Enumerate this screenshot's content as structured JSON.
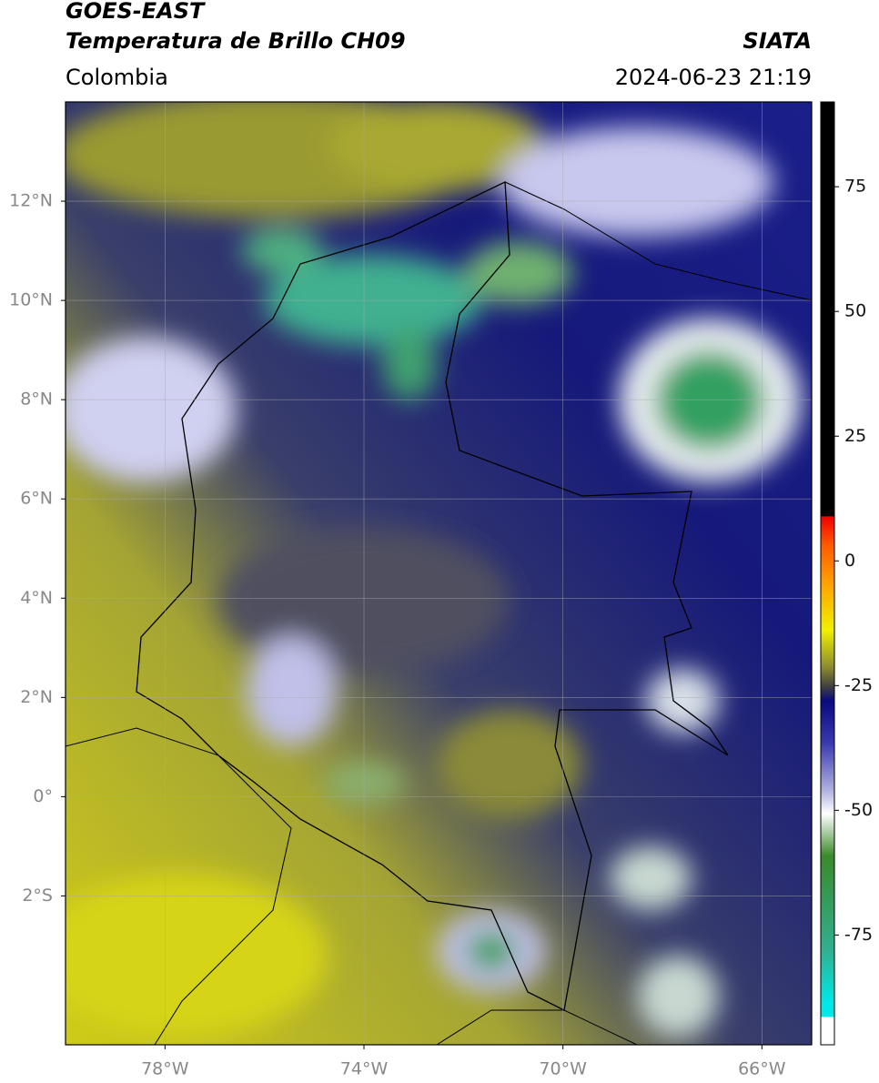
{
  "header": {
    "title": "GOES-EAST",
    "subtitle": "Temperatura de Brillo CH09",
    "source": "SIATA",
    "region": "Colombia",
    "datetime": "2024-06-23 21:19"
  },
  "map": {
    "lonlim": [
      -80,
      -65
    ],
    "latlim": [
      -5,
      14
    ],
    "lonticks": [
      {
        "value": -78,
        "label": "78°W"
      },
      {
        "value": -74,
        "label": "74°W"
      },
      {
        "value": -70,
        "label": "70°W"
      },
      {
        "value": -66,
        "label": "66°W"
      }
    ],
    "latticks": [
      {
        "value": 12,
        "label": "12°N"
      },
      {
        "value": 10,
        "label": "10°N"
      },
      {
        "value": 8,
        "label": "8°N"
      },
      {
        "value": 6,
        "label": "6°N"
      },
      {
        "value": 4,
        "label": "4°N"
      },
      {
        "value": 2,
        "label": "2°N"
      },
      {
        "value": 0,
        "label": "0°"
      },
      {
        "value": -2,
        "label": "2°S"
      }
    ],
    "grid": true
  },
  "colorbar": {
    "lim": [
      -97,
      92
    ],
    "ticks": [
      75,
      50,
      25,
      0,
      -25,
      -50,
      -75
    ]
  }
}
